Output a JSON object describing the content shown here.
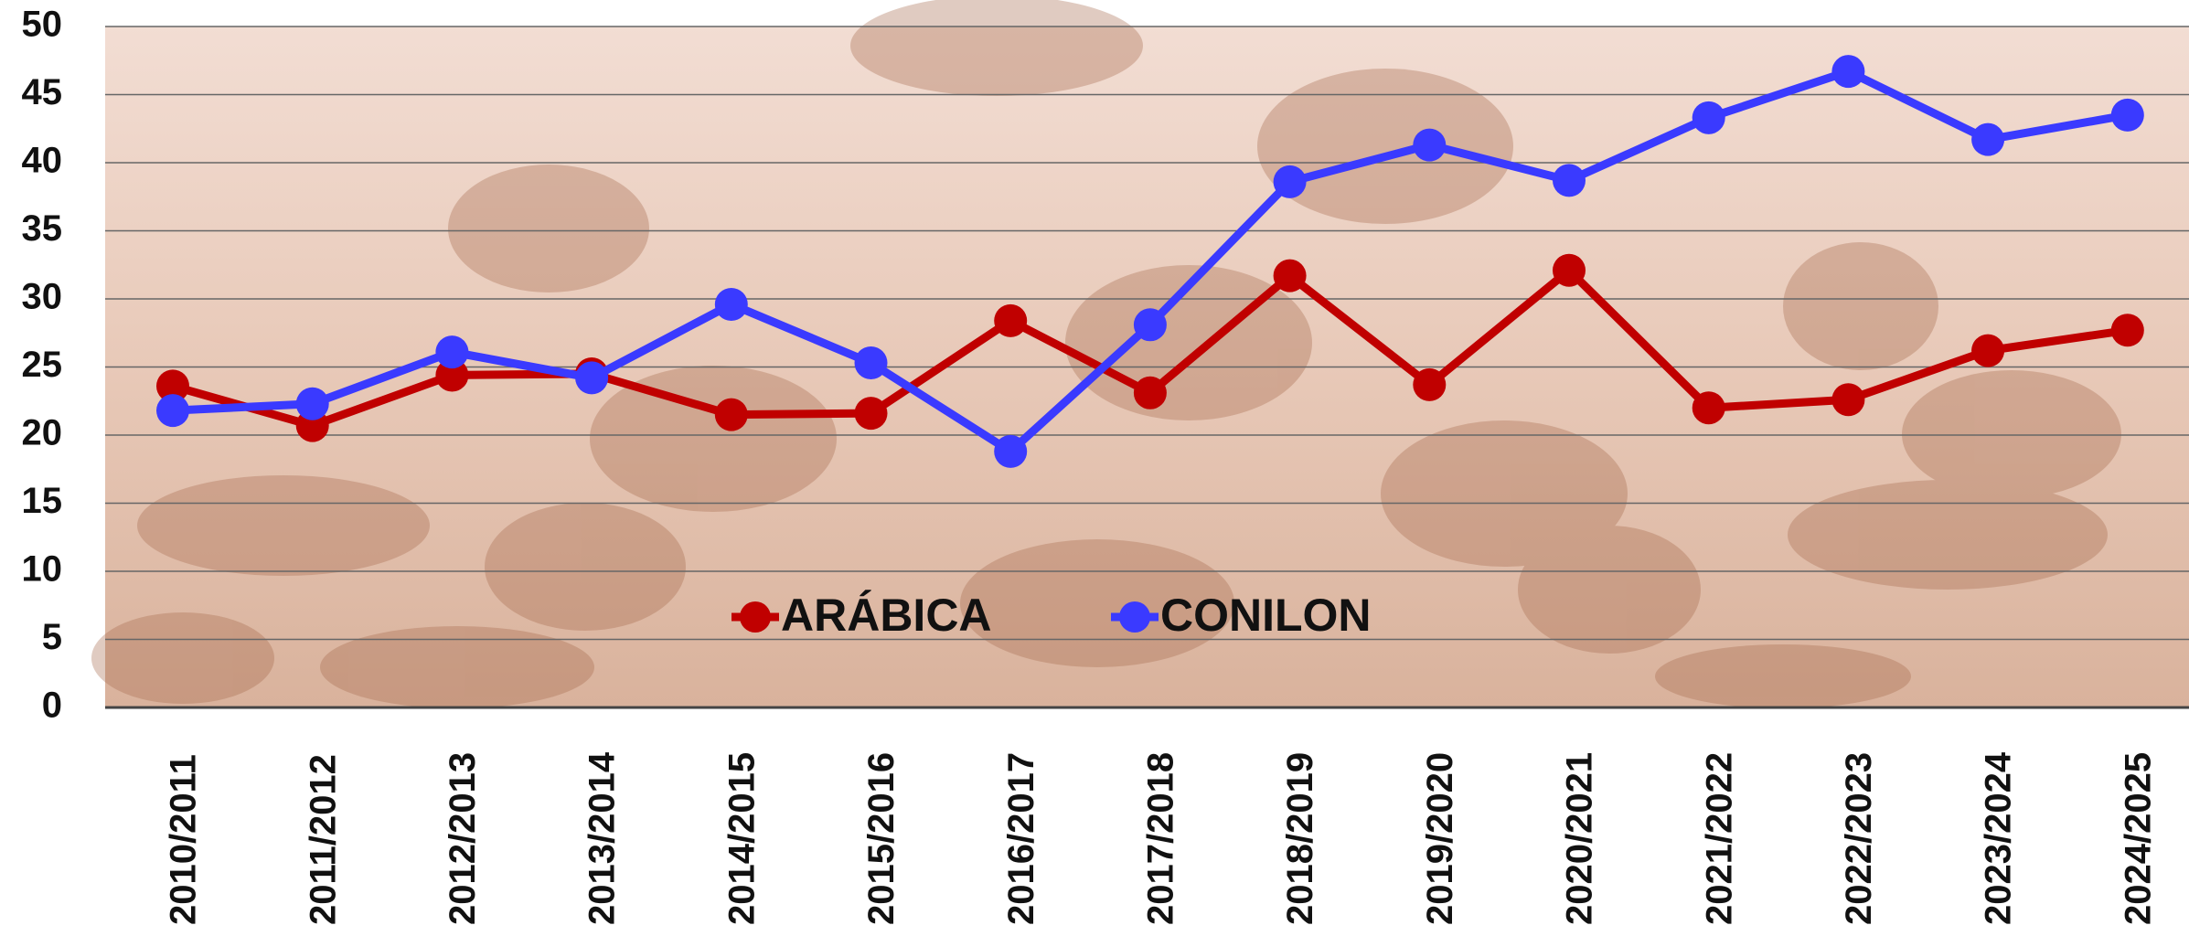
{
  "chart_data": {
    "type": "line",
    "categories": [
      "2010/2011",
      "2011/2012",
      "2012/2013",
      "2013/2014",
      "2014/2015",
      "2015/2016",
      "2016/2017",
      "2017/2018",
      "2018/2019",
      "2019/2020",
      "2020/2021",
      "2021/2022",
      "2022/2023",
      "2023/2024",
      "2024/2025"
    ],
    "series": [
      {
        "name": "ARÁBICA",
        "color": "#c00000",
        "values": [
          23.6,
          20.7,
          24.4,
          24.5,
          21.5,
          21.6,
          28.4,
          23.1,
          31.7,
          23.7,
          32.1,
          22.0,
          22.6,
          26.2,
          27.7
        ]
      },
      {
        "name": "CONILON",
        "color": "#3a3aff",
        "values": [
          21.8,
          22.3,
          26.1,
          24.2,
          29.6,
          25.3,
          18.8,
          28.1,
          38.6,
          41.3,
          38.7,
          43.3,
          46.7,
          41.7,
          43.5
        ]
      }
    ],
    "ylim": [
      0,
      50
    ],
    "yticks": [
      0,
      5,
      10,
      15,
      20,
      25,
      30,
      35,
      40,
      45,
      50
    ],
    "grid": true,
    "legend": "lower center"
  }
}
